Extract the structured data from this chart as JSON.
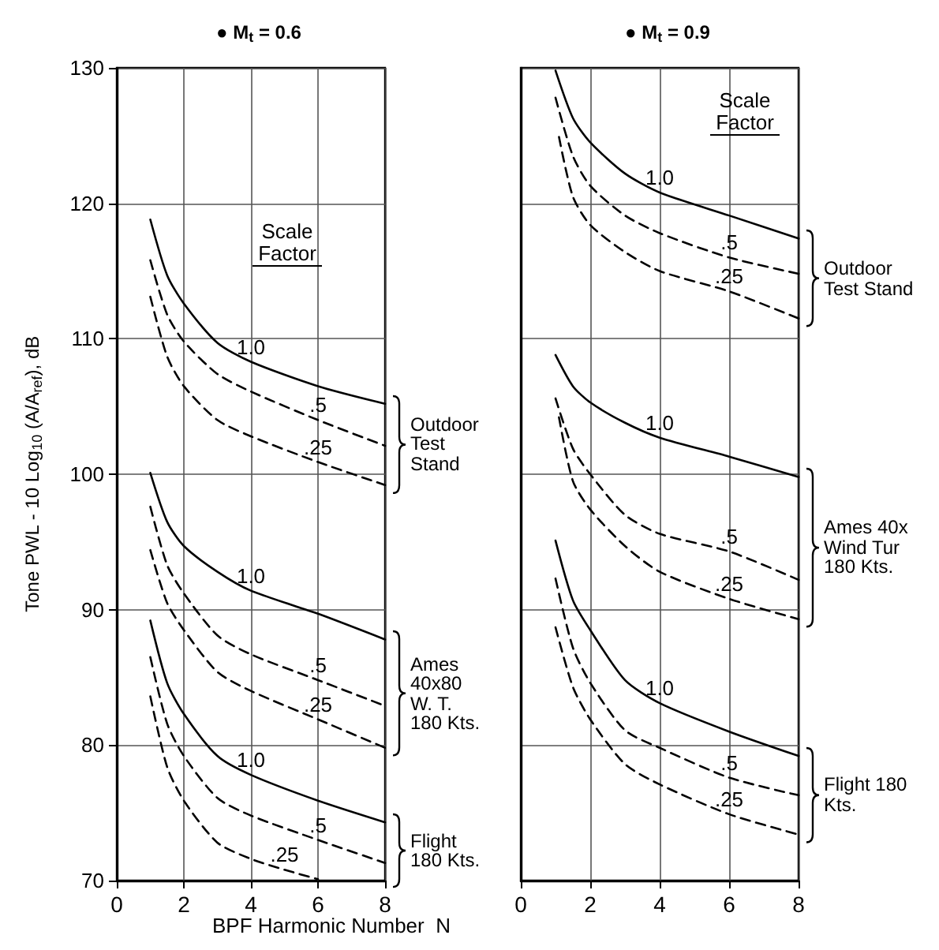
{
  "chart_data": [
    {
      "type": "line",
      "title": "● M$_{t}$ = 0.6",
      "xlabel": "BPF Harmonic Number  N",
      "ylabel": "Tone PWL - 10 Log$_{10}$ (A/A$_{ref}$), dB",
      "legend_title": "Scale Factor",
      "x": [
        1,
        1.5,
        2,
        3,
        4,
        6,
        8
      ],
      "xlim": [
        0,
        8
      ],
      "xticks": [
        0,
        2,
        4,
        6,
        8
      ],
      "ylim": [
        70,
        130
      ],
      "yticks": [
        70,
        80,
        90,
        100,
        110,
        120,
        130
      ],
      "grid": true,
      "marker": "none",
      "series": [
        {
          "name": "1.0",
          "color": "#000000",
          "line_style": "solid",
          "values": [
            118.8,
            114.7,
            112.6,
            109.7,
            108.3,
            106.5,
            105.2
          ]
        },
        {
          "name": ".5",
          "color": "#000000",
          "line_style": "dashed",
          "values": [
            115.8,
            111.8,
            109.8,
            107.4,
            106.1,
            104.0,
            102.1
          ]
        },
        {
          "name": ".25",
          "color": "#000000",
          "line_style": "dashed",
          "values": [
            113.1,
            108.7,
            106.5,
            104.0,
            102.8,
            100.9,
            99.2
          ]
        },
        {
          "name": "1.0",
          "color": "#000000",
          "line_style": "solid",
          "values": [
            100.1,
            96.5,
            94.7,
            92.8,
            91.4,
            89.7,
            87.8
          ]
        },
        {
          "name": ".5",
          "color": "#000000",
          "line_style": "dashed",
          "values": [
            97.6,
            93.3,
            91.2,
            88.1,
            86.7,
            84.8,
            82.9
          ]
        },
        {
          "name": ".25",
          "color": "#000000",
          "line_style": "dashed",
          "values": [
            94.4,
            90.5,
            88.5,
            85.4,
            84.0,
            81.9,
            79.8
          ]
        },
        {
          "name": "1.0",
          "color": "#000000",
          "line_style": "solid",
          "values": [
            89.2,
            84.6,
            82.3,
            79.2,
            77.8,
            75.9,
            74.3
          ]
        },
        {
          "name": ".5",
          "color": "#000000",
          "line_style": "dashed",
          "values": [
            86.5,
            81.6,
            79.2,
            76.1,
            74.8,
            73.0,
            71.3
          ]
        },
        {
          "name": ".25",
          "color": "#000000",
          "line_style": "dashed",
          "x": [
            1,
            1.5,
            2,
            3,
            4,
            5,
            6
          ],
          "values": [
            83.6,
            78.4,
            75.9,
            72.8,
            71.6,
            70.8,
            70.1
          ]
        }
      ],
      "annotations": [
        "Outdoor Test Stand",
        "Ames 40x80 W. T. 180 Kts.",
        "Flight 180 Kts."
      ]
    },
    {
      "type": "line",
      "title": "● M$_{t}$ = 0.9",
      "legend_title": "Scale Factor",
      "x": [
        1,
        1.5,
        2,
        3,
        4,
        6,
        8
      ],
      "xlim": [
        0,
        8
      ],
      "xticks": [
        0,
        2,
        4,
        6,
        8
      ],
      "ylim": [
        70,
        130
      ],
      "yticks": [
        70,
        80,
        90,
        100,
        110,
        120,
        130
      ],
      "grid": true,
      "marker": "none",
      "tick_labels": "x",
      "series": [
        {
          "name": "1.0",
          "color": "#000000",
          "line_style": "solid",
          "values": [
            129.8,
            126.3,
            124.5,
            122.2,
            120.8,
            119.1,
            117.4
          ]
        },
        {
          "name": ".5",
          "color": "#000000",
          "line_style": "dashed",
          "values": [
            127.8,
            123.5,
            121.3,
            119.1,
            117.8,
            116.0,
            114.8
          ]
        },
        {
          "name": ".25",
          "color": "#000000",
          "line_style": "dashed",
          "x": [
            1.1,
            1.5,
            2,
            3,
            4,
            6,
            8
          ],
          "values": [
            124.9,
            120.5,
            118.4,
            116.4,
            115.0,
            113.5,
            111.5
          ]
        },
        {
          "name": "1.0",
          "color": "#000000",
          "line_style": "solid",
          "values": [
            108.8,
            106.5,
            105.3,
            103.8,
            102.7,
            101.3,
            99.8
          ]
        },
        {
          "name": ".5",
          "color": "#000000",
          "line_style": "dashed",
          "values": [
            105.6,
            101.9,
            100.0,
            97.0,
            95.6,
            94.3,
            92.2
          ]
        },
        {
          "name": ".25",
          "color": "#000000",
          "line_style": "dashed",
          "x": [
            1.1,
            1.5,
            2,
            3,
            4,
            6,
            8
          ],
          "values": [
            104.2,
            99.5,
            97.4,
            94.7,
            92.8,
            90.8,
            89.3
          ]
        },
        {
          "name": "1.0",
          "color": "#000000",
          "line_style": "solid",
          "values": [
            95.1,
            90.7,
            88.5,
            84.8,
            83.1,
            81.0,
            79.2
          ]
        },
        {
          "name": ".5",
          "color": "#000000",
          "line_style": "dashed",
          "values": [
            92.3,
            87.2,
            84.6,
            81.1,
            79.8,
            77.6,
            76.3
          ]
        },
        {
          "name": ".25",
          "color": "#000000",
          "line_style": "dashed",
          "values": [
            88.7,
            84.3,
            81.9,
            78.6,
            77.1,
            74.9,
            73.4
          ]
        }
      ],
      "annotations": [
        "Outdoor Test Stand",
        "Ames 40x Wind Tur 180 Kts.",
        "Flight 180 Kts."
      ]
    }
  ]
}
